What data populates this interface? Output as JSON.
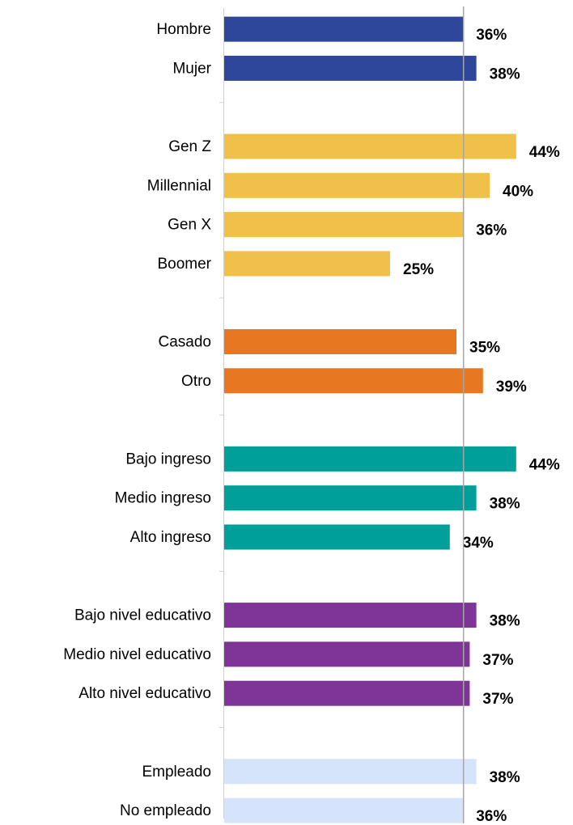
{
  "chart_data": {
    "type": "bar",
    "orientation": "horizontal",
    "title": "",
    "xlabel": "",
    "ylabel": "",
    "xlim": [
      0,
      50
    ],
    "reference_line": 36,
    "grid": false,
    "legend": "none",
    "groups": [
      {
        "color": "#2e479a",
        "categories": [
          "Hombre",
          "Mujer"
        ],
        "values": [
          36,
          38
        ],
        "labels": [
          "36%",
          "38%"
        ]
      },
      {
        "color": "#f0c048",
        "categories": [
          "Gen Z",
          "Millennial",
          "Gen X",
          "Boomer"
        ],
        "values": [
          44,
          40,
          36,
          25
        ],
        "labels": [
          "44%",
          "40%",
          "36%",
          "25%"
        ]
      },
      {
        "color": "#e87722",
        "categories": [
          "Casado",
          "Otro"
        ],
        "values": [
          35,
          39
        ],
        "labels": [
          "35%",
          "39%"
        ]
      },
      {
        "color": "#009f9a",
        "categories": [
          "Bajo ingreso",
          "Medio ingreso",
          "Alto ingreso"
        ],
        "values": [
          44,
          38,
          34
        ],
        "labels": [
          "44%",
          "38%",
          "34%"
        ]
      },
      {
        "color": "#7f3497",
        "categories": [
          "Bajo nivel educativo",
          "Medio nivel educativo",
          "Alto nivel educativo"
        ],
        "values": [
          38,
          37,
          37
        ],
        "labels": [
          "38%",
          "37%",
          "37%"
        ]
      },
      {
        "color": "#d5e4fa",
        "categories": [
          "Empleado",
          "No empleado"
        ],
        "values": [
          38,
          36
        ],
        "labels": [
          "38%",
          "36%"
        ]
      }
    ]
  }
}
